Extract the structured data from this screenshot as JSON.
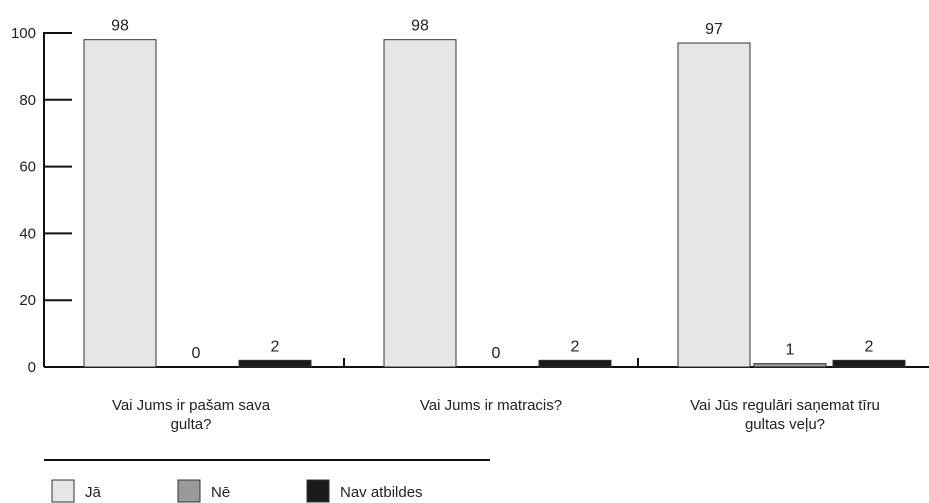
{
  "chart_data": {
    "type": "bar",
    "categories": [
      [
        "Vai Jums ir pašam sava",
        "gulta?"
      ],
      [
        "Vai Jums ir matracis?"
      ],
      [
        "Vai Jūs regulāri saņemat tīru",
        "gultas veļu?"
      ]
    ],
    "series": [
      {
        "name": "Jā",
        "color": "#e6e6e6",
        "values": [
          98,
          98,
          97
        ]
      },
      {
        "name": "Nē",
        "color": "#999999",
        "values": [
          0,
          0,
          1
        ]
      },
      {
        "name": "Nav atbildes",
        "color": "#1a1a1a",
        "values": [
          2,
          2,
          2
        ]
      }
    ],
    "yticks": [
      0,
      20,
      40,
      60,
      80,
      100
    ],
    "ylim": [
      0,
      100
    ],
    "legend_position": "bottom-left",
    "grid": false
  }
}
